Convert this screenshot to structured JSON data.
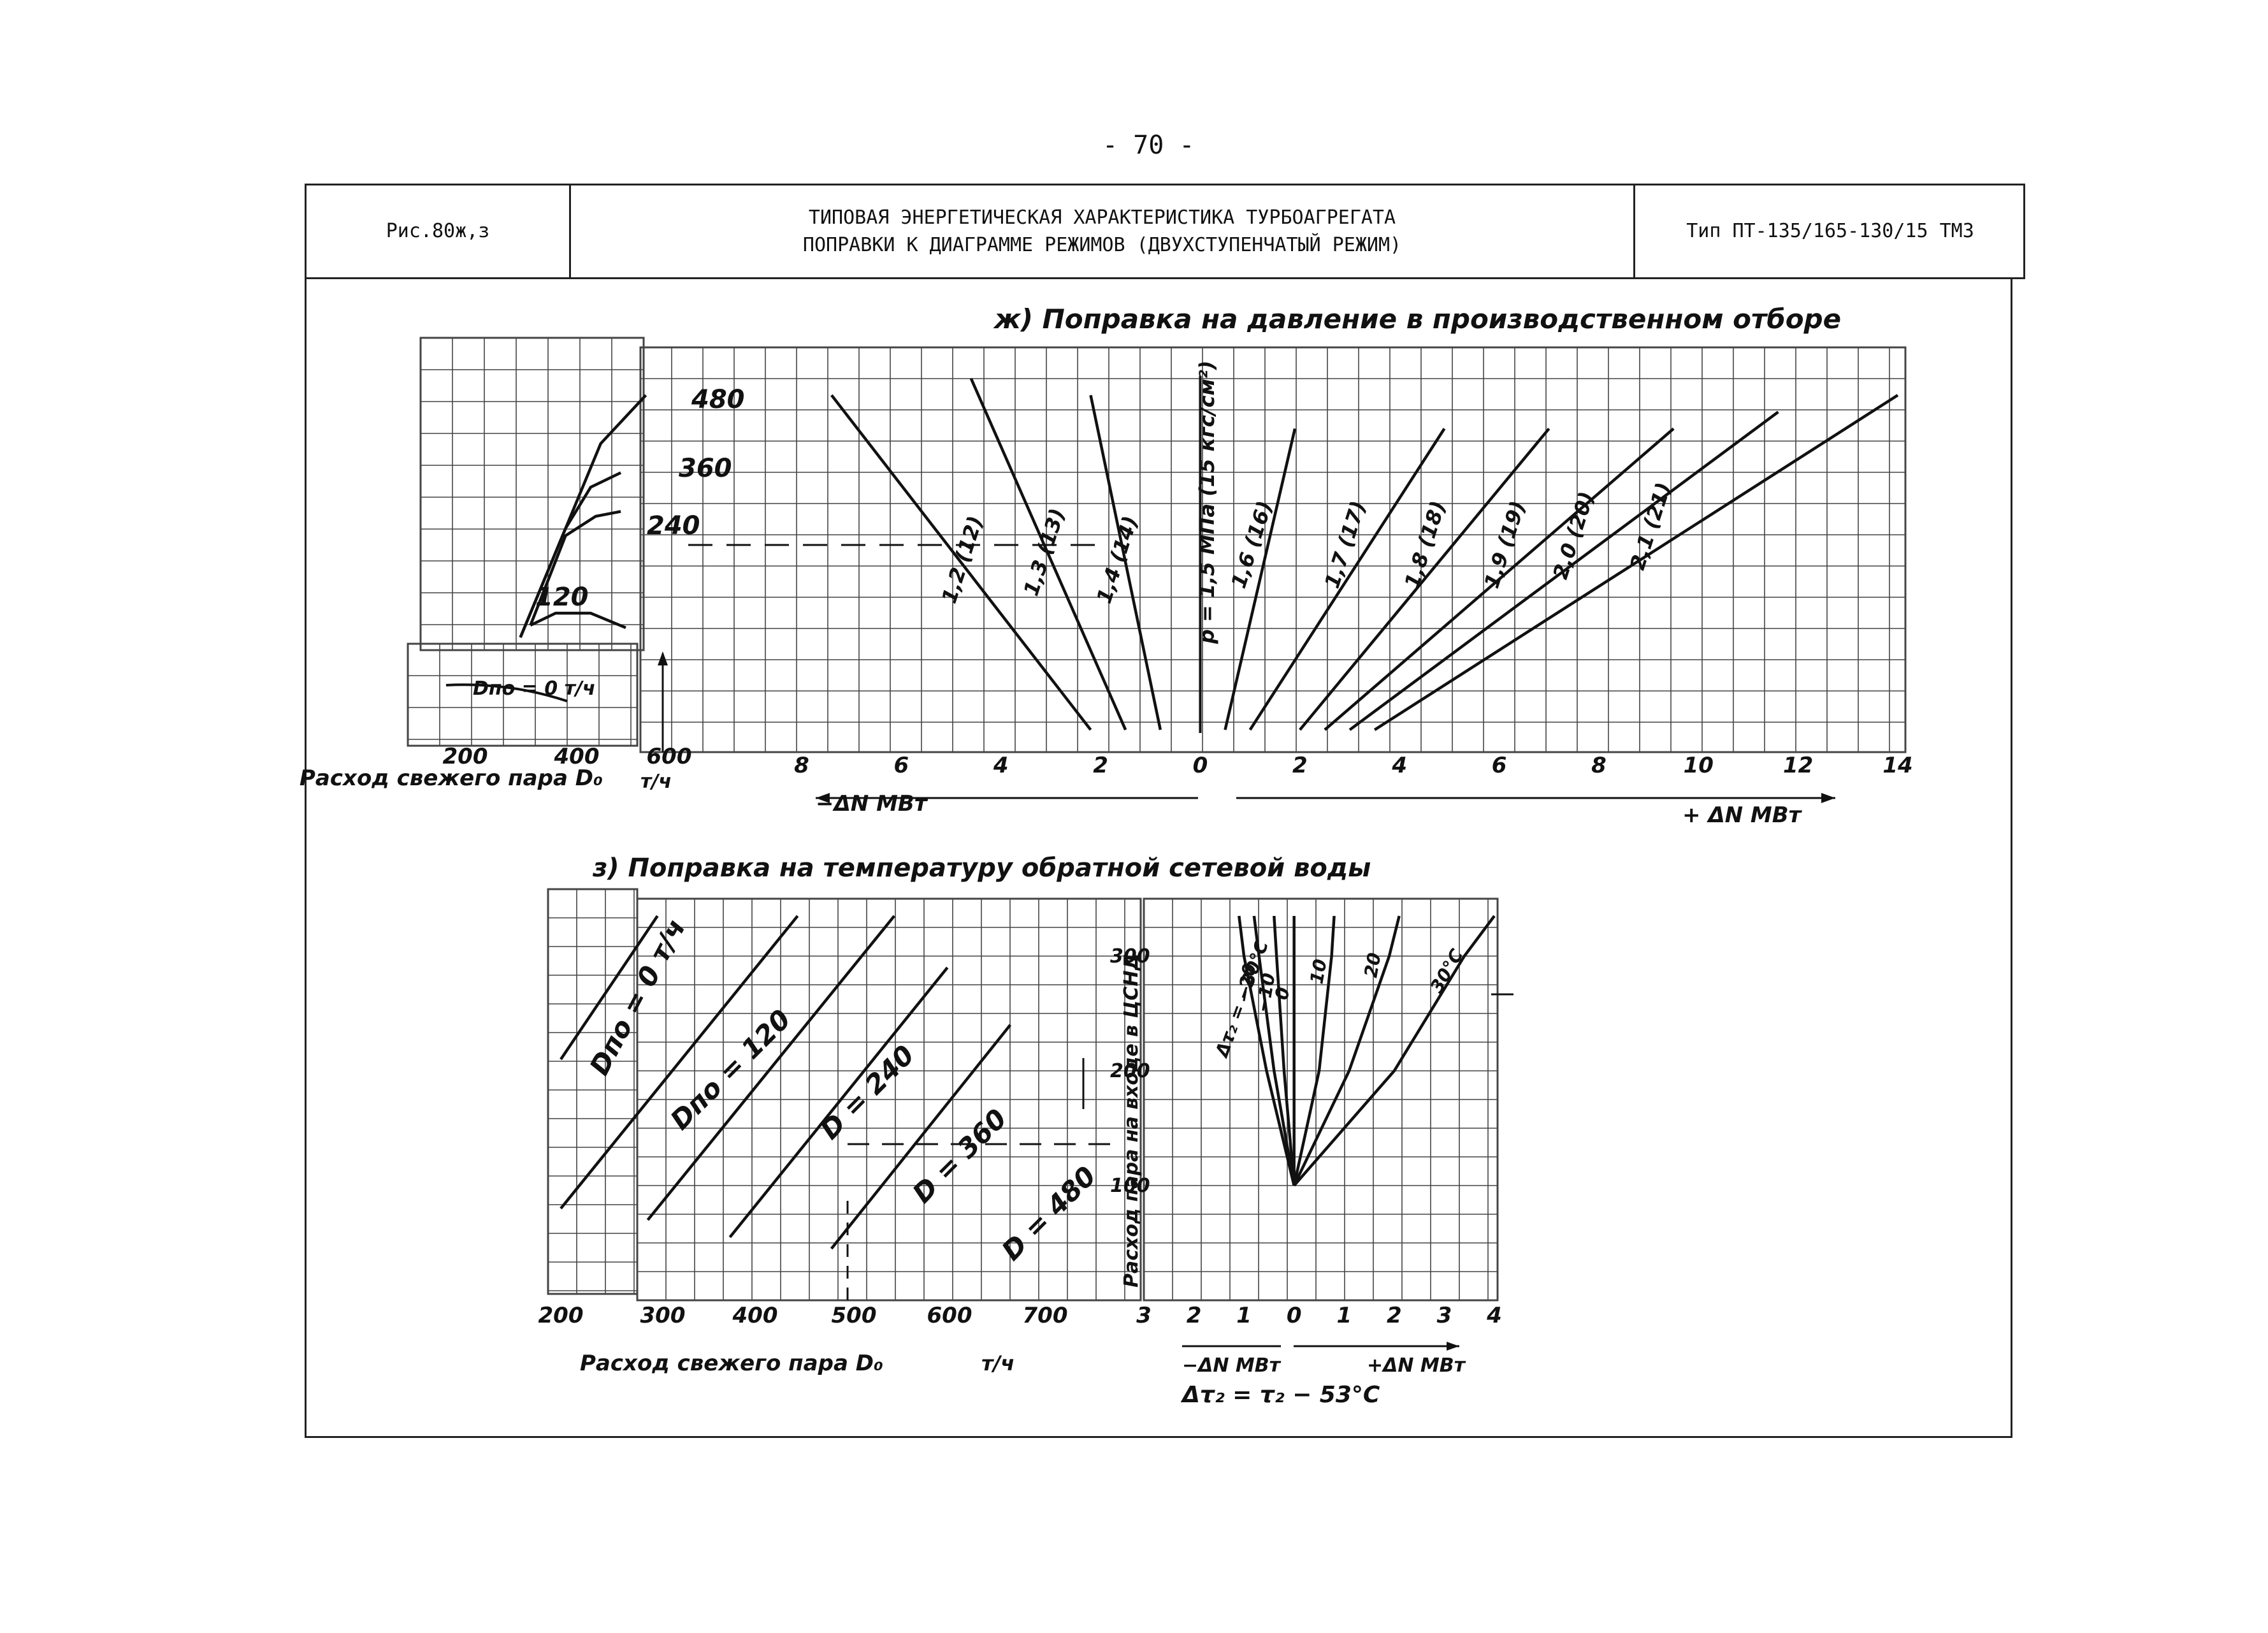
{
  "page_number": "- 70 -",
  "header": {
    "figure_label": "Рис.80ж,з",
    "title_line1": "ТИПОВАЯ ЭНЕРГЕТИЧЕСКАЯ ХАРАКТЕРИСТИКА ТУРБОАГРЕГАТА",
    "title_line2": "ПОПРАВКИ К ДИАГРАММЕ РЕЖИМОВ (ДВУХСТУПЕНЧАТЫЙ РЕЖИМ)",
    "turbine_type": "Тип ПТ-135/165-130/15",
    "turbine_suffix": "ТМЗ"
  },
  "colors": {
    "ink": "#111111",
    "grid": "#444444",
    "background": "#ffffff"
  },
  "chart_data": [
    {
      "id": "zh",
      "type": "line",
      "title": "ж) Поправка на давление в производственном отборе",
      "left_panel": {
        "ylabel": "",
        "xlabel": "Расход свежего пара D₀",
        "xunit": "т/ч",
        "x_ticks": [
          "200",
          "400",
          "600"
        ],
        "xlim": [
          200,
          600
        ],
        "series_label_inset": "Dпо = 0 т/ч",
        "series": [
          {
            "name": "480",
            "points": [
              [
                310,
                0.0
              ],
              [
                400,
                0.45
              ],
              [
                470,
                0.8
              ],
              [
                560,
                1.0
              ]
            ]
          },
          {
            "name": "360",
            "points": [
              [
                310,
                0.0
              ],
              [
                400,
                0.45
              ],
              [
                450,
                0.62
              ],
              [
                510,
                0.68
              ]
            ]
          },
          {
            "name": "240",
            "points": [
              [
                330,
                0.05
              ],
              [
                400,
                0.42
              ],
              [
                460,
                0.5
              ],
              [
                510,
                0.52
              ]
            ]
          },
          {
            "name": "120",
            "points": [
              [
                330,
                0.05
              ],
              [
                380,
                0.1
              ],
              [
                450,
                0.1
              ],
              [
                520,
                0.04
              ]
            ]
          }
        ]
      },
      "right_panel": {
        "xlabel_neg": "−ΔN МВт",
        "xlabel_pos": "+ ΔN МВт",
        "x_ticks": [
          "8",
          "6",
          "4",
          "2",
          "0",
          "2",
          "4",
          "6",
          "8",
          "10",
          "12",
          "14"
        ],
        "xlim": [
          -8,
          14
        ],
        "reference_label": "p = 1,5 МПа (15 кгс/см²)",
        "series": [
          {
            "name": "1,2 (12)",
            "points": [
              [
                -7.4,
                1.0
              ],
              [
                -2.2,
                0.0
              ]
            ]
          },
          {
            "name": "1,3 (13)",
            "points": [
              [
                -4.6,
                1.05
              ],
              [
                -1.5,
                0.0
              ]
            ]
          },
          {
            "name": "1,4 (14)",
            "points": [
              [
                -2.2,
                1.0
              ],
              [
                -0.8,
                0.0
              ]
            ]
          },
          {
            "name": "1,6 (16)",
            "points": [
              [
                0.5,
                0.0
              ],
              [
                1.9,
                0.9
              ]
            ]
          },
          {
            "name": "1,7 (17)",
            "points": [
              [
                1.0,
                0.0
              ],
              [
                4.9,
                0.9
              ]
            ]
          },
          {
            "name": "1,8 (18)",
            "points": [
              [
                2.0,
                0.0
              ],
              [
                7.0,
                0.9
              ]
            ]
          },
          {
            "name": "1,9 (19)",
            "points": [
              [
                2.5,
                0.0
              ],
              [
                9.5,
                0.9
              ]
            ]
          },
          {
            "name": "2,0 (20)",
            "points": [
              [
                3.0,
                0.0
              ],
              [
                11.6,
                0.95
              ]
            ]
          },
          {
            "name": "2,1 (21)",
            "points": [
              [
                3.5,
                0.0
              ],
              [
                14.0,
                1.0
              ]
            ]
          }
        ]
      }
    },
    {
      "id": "z",
      "type": "line",
      "title": "з) Поправка на температуру обратной сетевой воды",
      "left_panel": {
        "xlabel": "Расход свежего пара D₀",
        "xunit": "т/ч",
        "x_ticks": [
          "200",
          "300",
          "400",
          "500",
          "600",
          "700"
        ],
        "xlim": [
          200,
          800
        ],
        "series": [
          {
            "name": "Dпо = 0 т/ч",
            "points": [
              [
                200,
                210
              ],
              [
                300,
                335
              ]
            ]
          },
          {
            "name": "Dпо = 120",
            "points": [
              [
                200,
                80
              ],
              [
                445,
                335
              ]
            ]
          },
          {
            "name": "D = 240",
            "points": [
              [
                290,
                70
              ],
              [
                545,
                335
              ]
            ]
          },
          {
            "name": "D = 360",
            "points": [
              [
                375,
                55
              ],
              [
                600,
                290
              ]
            ]
          },
          {
            "name": "D = 480",
            "points": [
              [
                480,
                45
              ],
              [
                665,
                240
              ]
            ]
          }
        ]
      },
      "right_panel": {
        "ylabel": "Расход пара на входе в ЦСНД",
        "y_ticks": [
          "100",
          "200",
          "300"
        ],
        "ylim": [
          0,
          350
        ],
        "x_ticks": [
          "3",
          "2",
          "1",
          "0",
          "1",
          "2",
          "3",
          "4"
        ],
        "xlim": [
          -3,
          4
        ],
        "xlabel_neg": "−ΔN МВт",
        "xlabel_pos": "+ΔN МВт",
        "formula": "Δτ₂ = τ₂ − 53°C",
        "series_labels": [
          "Δτ₂ = −30°C",
          "−20",
          "−10",
          "0",
          "10",
          "20",
          "30°C"
        ],
        "series": [
          {
            "name": "Δτ₂ = −30°C",
            "points": [
              [
                0.0,
                100
              ],
              [
                -0.55,
                200
              ],
              [
                -1.0,
                300
              ],
              [
                -1.1,
                335
              ]
            ]
          },
          {
            "name": "−20",
            "points": [
              [
                0.0,
                100
              ],
              [
                -0.4,
                200
              ],
              [
                -0.7,
                300
              ],
              [
                -0.8,
                335
              ]
            ]
          },
          {
            "name": "−10",
            "points": [
              [
                0.0,
                100
              ],
              [
                -0.2,
                200
              ],
              [
                -0.35,
                300
              ],
              [
                -0.4,
                335
              ]
            ]
          },
          {
            "name": "0",
            "points": [
              [
                0.0,
                100
              ],
              [
                0.0,
                200
              ],
              [
                0.0,
                335
              ]
            ]
          },
          {
            "name": "10",
            "points": [
              [
                0.0,
                100
              ],
              [
                0.5,
                200
              ],
              [
                0.75,
                300
              ],
              [
                0.8,
                335
              ]
            ]
          },
          {
            "name": "20",
            "points": [
              [
                0.0,
                100
              ],
              [
                1.1,
                200
              ],
              [
                1.9,
                300
              ],
              [
                2.1,
                335
              ]
            ]
          },
          {
            "name": "30°C",
            "points": [
              [
                0.0,
                100
              ],
              [
                2.0,
                200
              ],
              [
                3.4,
                300
              ],
              [
                4.0,
                335
              ]
            ]
          }
        ]
      }
    }
  ]
}
